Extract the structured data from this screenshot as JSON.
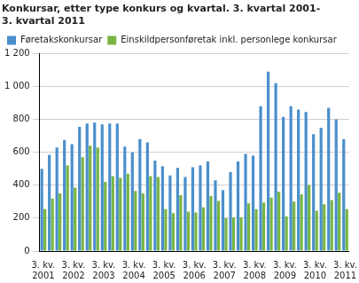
{
  "chart_data": {
    "type": "bar",
    "title": [
      "Konkursar, etter type konkurs og kvartal. 3. kvartal 2001-",
      "3. kvartal 2011"
    ],
    "categories": [
      "3. kv. 2001",
      null,
      null,
      null,
      "3. kv. 2002",
      null,
      null,
      null,
      "3. kv. 2003",
      null,
      null,
      null,
      "3. kv. 2004",
      null,
      null,
      null,
      "3. kv. 2005",
      null,
      null,
      null,
      "3. kv. 2006",
      null,
      null,
      null,
      "3. kv. 2007",
      null,
      null,
      null,
      "3. kv. 2008",
      null,
      null,
      null,
      "3. kv. 2009",
      null,
      null,
      null,
      "3. kv. 2010",
      null,
      null,
      null,
      "3. kv. 2011"
    ],
    "series": [
      {
        "name": "Føretakskonkursar",
        "color": "#4a8fcb",
        "values": [
          500,
          585,
          630,
          675,
          650,
          755,
          775,
          780,
          770,
          775,
          775,
          635,
          600,
          680,
          660,
          550,
          515,
          460,
          505,
          450,
          510,
          520,
          545,
          430,
          370,
          480,
          545,
          590,
          580,
          880,
          1090,
          1020,
          815,
          880,
          860,
          845,
          710,
          750,
          870,
          800,
          680
        ]
      },
      {
        "name": "Einskildpersonføretak inkl. personlege konkursar",
        "color": "#78b543",
        "values": [
          255,
          320,
          350,
          520,
          385,
          570,
          640,
          630,
          420,
          455,
          445,
          470,
          365,
          350,
          455,
          450,
          255,
          230,
          340,
          240,
          235,
          265,
          335,
          305,
          200,
          205,
          205,
          290,
          255,
          295,
          325,
          360,
          210,
          300,
          345,
          400,
          245,
          285,
          310,
          355,
          255
        ]
      }
    ],
    "ylim": [
      0,
      1200
    ],
    "yticks": [
      0,
      200,
      400,
      600,
      800,
      {
        "value": 1000,
        "label": "1 000"
      },
      {
        "value": 1200,
        "label": "1 200"
      }
    ],
    "grid": true,
    "legend": "upper left"
  }
}
